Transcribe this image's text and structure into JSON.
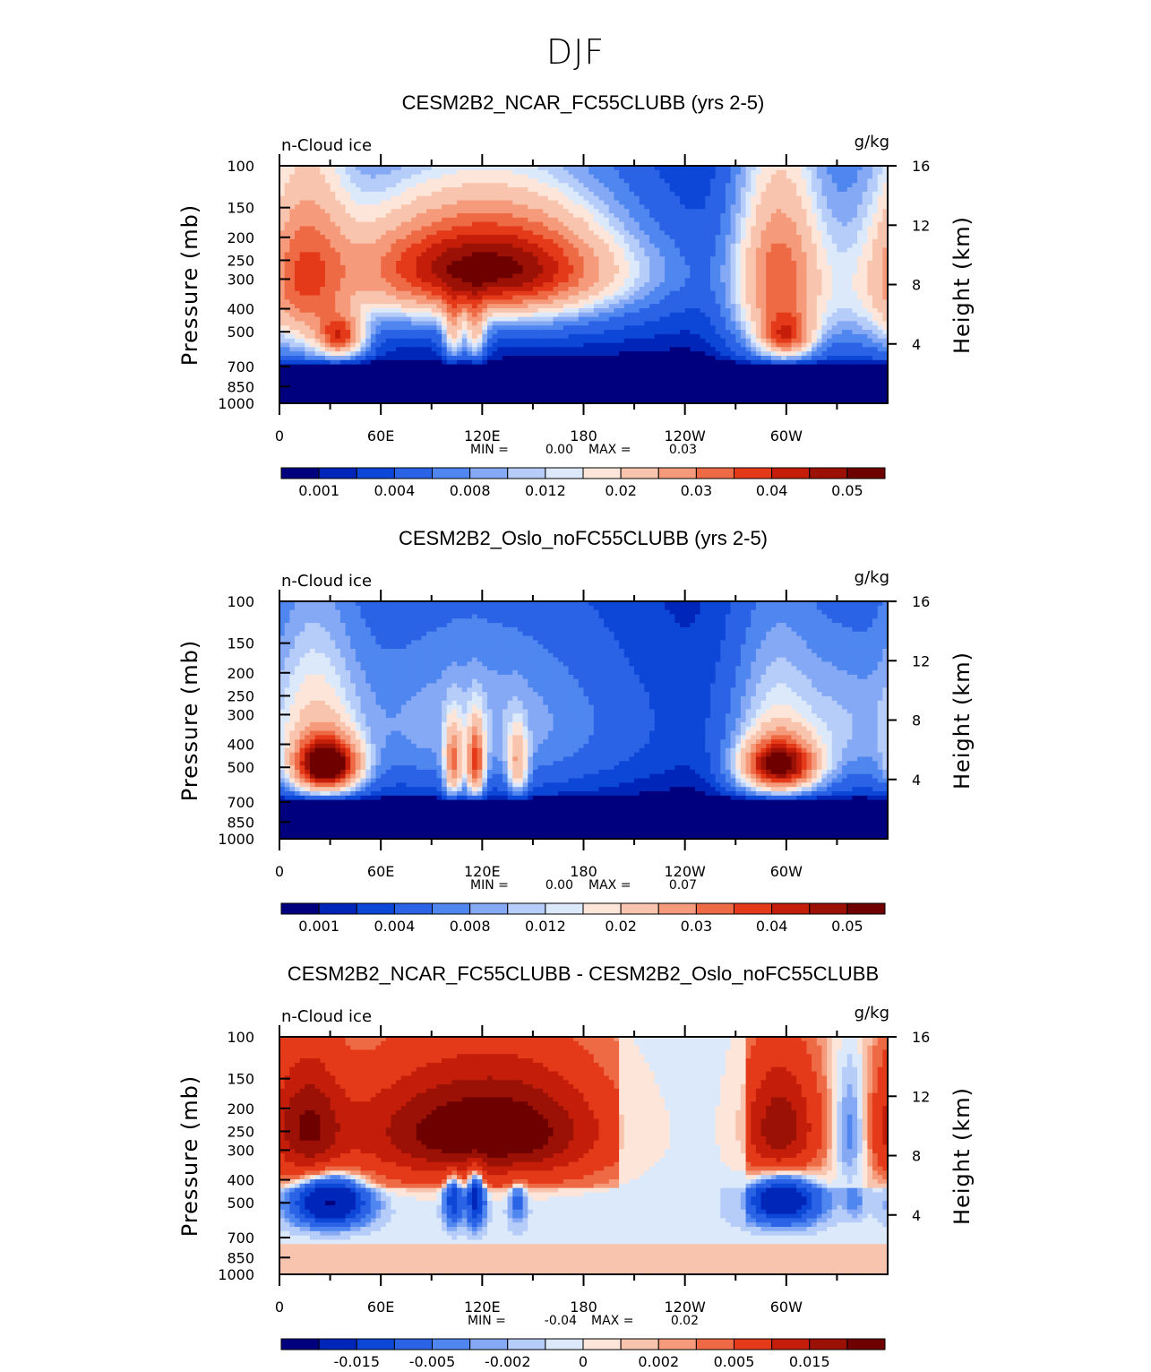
{
  "page": {
    "suptitle": "DJF"
  },
  "axes": {
    "y_left_label": "Pressure (mb)",
    "y_right_label": "Height (km)",
    "pressure_ticks": [
      "100",
      "150",
      "200",
      "250",
      "300",
      "400",
      "500",
      "700",
      "850",
      "1000"
    ],
    "height_ticks": [
      "16",
      "12",
      "8",
      "4"
    ],
    "x_ticks": [
      "0",
      "60E",
      "120E",
      "180",
      "120W",
      "60W"
    ],
    "variable": "n-Cloud ice",
    "units": "g/kg"
  },
  "colors": {
    "abs_scale": [
      "#00007f",
      "#0026b9",
      "#0d47d8",
      "#2a63e5",
      "#4f86ef",
      "#85a9f4",
      "#b5cdf8",
      "#dce9fb",
      "#fde6d9",
      "#f9c4ad",
      "#f59b7b",
      "#ee6a45",
      "#e43a1a",
      "#c41e0a",
      "#9b1106",
      "#6e0000"
    ],
    "diff_scale": [
      "#00007f",
      "#0026b9",
      "#0d47d8",
      "#2a63e5",
      "#4f86ef",
      "#85a9f4",
      "#b5cdf8",
      "#dce9fb",
      "#fde6d9",
      "#f9c4ad",
      "#f59b7b",
      "#ee6a45",
      "#e43a1a",
      "#c41e0a",
      "#9b1106",
      "#6e0000"
    ]
  },
  "chart_data": [
    {
      "type": "heatmap",
      "title": "CESM2B2_NCAR_FC55CLUBB (yrs 2-5)",
      "xlabel": "",
      "ylabel": "Pressure (mb)",
      "xlim": [
        0,
        360
      ],
      "ylim_hPa": [
        1000,
        100
      ],
      "min_label": "MIN =",
      "min_value": "0.00",
      "max_label": "MAX =",
      "max_value": "0.03",
      "colorbar_labels": [
        "0.001",
        "0.004",
        "0.008",
        "0.012",
        "0.02",
        "0.03",
        "0.04",
        "0.05"
      ],
      "blobs": [
        {
          "lon": 15,
          "p": 300,
          "sx": 18,
          "sy": 170,
          "amp": 0.026
        },
        {
          "lon": 36,
          "p": 520,
          "sx": 9,
          "sy": 70,
          "amp": 0.028
        },
        {
          "lon": 92,
          "p": 270,
          "sx": 38,
          "sy": 90,
          "amp": 0.022
        },
        {
          "lon": 145,
          "p": 270,
          "sx": 35,
          "sy": 90,
          "amp": 0.024
        },
        {
          "lon": 120,
          "p": 260,
          "sx": 55,
          "sy": 120,
          "amp": 0.01
        },
        {
          "lon": 103,
          "p": 480,
          "sx": 4,
          "sy": 100,
          "amp": 0.014
        },
        {
          "lon": 116,
          "p": 480,
          "sx": 4,
          "sy": 100,
          "amp": 0.014
        },
        {
          "lon": 195,
          "p": 280,
          "sx": 40,
          "sy": 60,
          "amp": 0.0025
        },
        {
          "lon": 296,
          "p": 300,
          "sx": 17,
          "sy": 170,
          "amp": 0.027
        },
        {
          "lon": 300,
          "p": 520,
          "sx": 10,
          "sy": 70,
          "amp": 0.024
        },
        {
          "lon": 335,
          "p": 330,
          "sx": 15,
          "sy": 150,
          "amp": 0.005
        },
        {
          "lon": 75,
          "p": 300,
          "sx": 160,
          "sy": 200,
          "amp": 0.0022
        }
      ]
    },
    {
      "type": "heatmap",
      "title": "CESM2B2_Oslo_noFC55CLUBB (yrs 2-5)",
      "xlabel": "",
      "ylabel": "Pressure (mb)",
      "xlim": [
        0,
        360
      ],
      "ylim_hPa": [
        1000,
        100
      ],
      "min_label": "MIN =",
      "min_value": "0.00",
      "max_label": "MAX =",
      "max_value": "0.07",
      "colorbar_labels": [
        "0.001",
        "0.004",
        "0.008",
        "0.012",
        "0.02",
        "0.03",
        "0.04",
        "0.05"
      ],
      "blobs": [
        {
          "lon": 28,
          "p": 490,
          "sx": 12,
          "sy": 80,
          "amp": 0.055
        },
        {
          "lon": 20,
          "p": 320,
          "sx": 18,
          "sy": 170,
          "amp": 0.012
        },
        {
          "lon": 103,
          "p": 480,
          "sx": 3.5,
          "sy": 110,
          "amp": 0.022
        },
        {
          "lon": 116,
          "p": 480,
          "sx": 3.5,
          "sy": 110,
          "amp": 0.028
        },
        {
          "lon": 141,
          "p": 480,
          "sx": 4,
          "sy": 100,
          "amp": 0.016
        },
        {
          "lon": 120,
          "p": 330,
          "sx": 50,
          "sy": 160,
          "amp": 0.006
        },
        {
          "lon": 296,
          "p": 490,
          "sx": 14,
          "sy": 80,
          "amp": 0.045
        },
        {
          "lon": 296,
          "p": 330,
          "sx": 18,
          "sy": 170,
          "amp": 0.01
        },
        {
          "lon": 333,
          "p": 340,
          "sx": 14,
          "sy": 150,
          "amp": 0.005
        },
        {
          "lon": 60,
          "p": 300,
          "sx": 150,
          "sy": 220,
          "amp": 0.0022
        }
      ]
    },
    {
      "type": "heatmap",
      "title": "CESM2B2_NCAR_FC55CLUBB - CESM2B2_Oslo_noFC55CLUBB",
      "xlabel": "",
      "ylabel": "Pressure (mb)",
      "xlim": [
        0,
        360
      ],
      "ylim_hPa": [
        1000,
        100
      ],
      "min_label": "MIN =",
      "min_value": "-0.04",
      "max_label": "MAX =",
      "max_value": "0.02",
      "colorbar_labels": [
        "-0.015",
        "-0.005",
        "-0.002",
        "0",
        "0.002",
        "0.005",
        "0.015"
      ],
      "blobs": [
        {
          "lon": 16,
          "p": 240,
          "sx": 15,
          "sy": 90,
          "amp": 0.018
        },
        {
          "lon": 92,
          "p": 250,
          "sx": 38,
          "sy": 90,
          "amp": 0.016
        },
        {
          "lon": 145,
          "p": 250,
          "sx": 35,
          "sy": 90,
          "amp": 0.017
        },
        {
          "lon": 30,
          "p": 500,
          "sx": 13,
          "sy": 70,
          "amp": -0.03
        },
        {
          "lon": 103,
          "p": 480,
          "sx": 3.5,
          "sy": 80,
          "amp": -0.014
        },
        {
          "lon": 116,
          "p": 470,
          "sx": 3.5,
          "sy": 90,
          "amp": -0.018
        },
        {
          "lon": 141,
          "p": 480,
          "sx": 3.5,
          "sy": 80,
          "amp": -0.006
        },
        {
          "lon": 296,
          "p": 240,
          "sx": 15,
          "sy": 90,
          "amp": 0.017
        },
        {
          "lon": 298,
          "p": 490,
          "sx": 13,
          "sy": 70,
          "amp": -0.025
        },
        {
          "lon": 338,
          "p": 250,
          "sx": 8,
          "sy": 110,
          "amp": -0.006
        },
        {
          "lon": 340,
          "p": 500,
          "sx": 4,
          "sy": 50,
          "amp": -0.003
        }
      ]
    }
  ]
}
